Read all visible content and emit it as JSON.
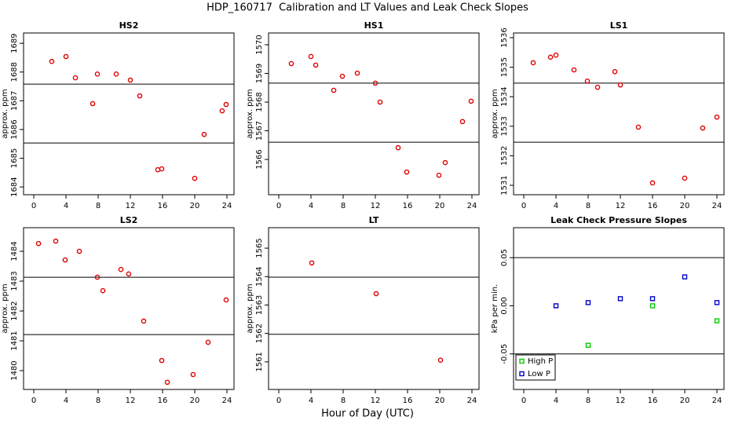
{
  "title": "HDP_160717  Calibration and LT Values and Leak Check Slopes",
  "xlabel": "Hour of Day (UTC)",
  "chart_data": [
    {
      "type": "scatter",
      "title": "HS2",
      "ylabel": "approx. ppm",
      "marker": "circle",
      "color": "#e00000",
      "x": [
        2.24,
        4.0,
        5.17,
        7.32,
        7.9,
        10.24,
        12.0,
        13.17,
        15.41,
        15.9,
        20.0,
        21.17,
        23.41,
        23.9
      ],
      "values": [
        1688.37,
        1688.54,
        1687.8,
        1686.9,
        1687.93,
        1687.93,
        1687.72,
        1687.17,
        1684.6,
        1684.63,
        1684.3,
        1685.83,
        1686.65,
        1686.87
      ],
      "reference_lines": [
        1687.58,
        1685.53
      ],
      "xlim": [
        -1.27,
        24.88
      ],
      "xticks": [
        0,
        4,
        8,
        12,
        16,
        20,
        24
      ],
      "ylim": [
        1683.73,
        1689.36
      ],
      "yticks": [
        1684,
        1685,
        1686,
        1687,
        1688,
        1689
      ]
    },
    {
      "type": "scatter",
      "title": "HS1",
      "ylabel": "approx. ppm",
      "marker": "circle",
      "color": "#e00000",
      "x": [
        1.56,
        4.0,
        4.59,
        6.83,
        7.9,
        9.76,
        12.0,
        12.59,
        14.83,
        15.9,
        19.9,
        20.68,
        22.83,
        23.9
      ],
      "values": [
        1569.34,
        1569.59,
        1569.29,
        1568.41,
        1568.9,
        1569.01,
        1568.66,
        1568.0,
        1566.41,
        1565.56,
        1565.45,
        1565.89,
        1567.32,
        1568.03
      ],
      "reference_lines": [
        1568.66,
        1566.6
      ],
      "xlim": [
        -1.27,
        24.88
      ],
      "xticks": [
        0,
        4,
        8,
        12,
        16,
        20,
        24
      ],
      "ylim": [
        1564.77,
        1570.41
      ],
      "yticks": [
        1566,
        1567,
        1568,
        1569,
        1570
      ]
    },
    {
      "type": "scatter",
      "title": "LS1",
      "ylabel": "approx. ppm",
      "marker": "circle",
      "color": "#e00000",
      "x": [
        1.17,
        3.32,
        4.0,
        6.24,
        7.9,
        9.17,
        11.32,
        12.0,
        14.24,
        16.0,
        20.0,
        22.24,
        24.0
      ],
      "values": [
        1535.15,
        1535.34,
        1535.41,
        1534.91,
        1534.53,
        1534.32,
        1534.85,
        1534.4,
        1532.97,
        1531.08,
        1531.24,
        1532.94,
        1533.31
      ],
      "reference_lines": [
        1534.46,
        1532.46
      ],
      "xlim": [
        -1.27,
        24.88
      ],
      "xticks": [
        0,
        4,
        8,
        12,
        16,
        20,
        24
      ],
      "ylim": [
        1530.68,
        1536.16
      ],
      "yticks": [
        1531,
        1532,
        1533,
        1534,
        1535,
        1536
      ]
    },
    {
      "type": "scatter",
      "title": "LS2",
      "ylabel": "approx. ppm",
      "marker": "circle",
      "color": "#e00000",
      "x": [
        0.59,
        2.73,
        3.9,
        5.66,
        7.9,
        8.59,
        10.83,
        11.8,
        13.66,
        15.9,
        16.59,
        19.8,
        21.66,
        23.9
      ],
      "values": [
        1484.26,
        1484.34,
        1483.71,
        1484.0,
        1483.13,
        1482.68,
        1483.39,
        1483.24,
        1481.66,
        1480.34,
        1479.61,
        1479.87,
        1480.95,
        1482.37
      ],
      "reference_lines": [
        1483.13,
        1481.21
      ],
      "xlim": [
        -1.27,
        24.88
      ],
      "xticks": [
        0,
        4,
        8,
        12,
        16,
        20,
        24
      ],
      "ylim": [
        1479.37,
        1484.79
      ],
      "yticks": [
        1480,
        1481,
        1482,
        1483,
        1484
      ]
    },
    {
      "type": "scatter",
      "title": "LT",
      "ylabel": "approx. ppm",
      "marker": "circle",
      "color": "#e00000",
      "x": [
        4.1,
        12.1,
        20.1
      ],
      "values": [
        1564.48,
        1563.4,
        1561.06
      ],
      "reference_lines": [
        1563.98,
        1561.97
      ],
      "xlim": [
        -1.27,
        24.88
      ],
      "xticks": [
        0,
        4,
        8,
        12,
        16,
        20,
        24
      ],
      "ylim": [
        1560.03,
        1565.72
      ],
      "yticks": [
        1561,
        1562,
        1563,
        1564,
        1565
      ]
    },
    {
      "type": "scatter",
      "title": "Leak Check Pressure Slopes",
      "ylabel": "kPa per min.",
      "marker": "square",
      "legend": "bottom-left",
      "series": [
        {
          "name": "High P",
          "color": "#00cc00",
          "x": [
            8.0,
            16.0,
            24.0
          ],
          "values": [
            -0.041,
            0.0,
            -0.0156
          ]
        },
        {
          "name": "Low P",
          "color": "#0000cc",
          "x": [
            4.0,
            8.0,
            12.0,
            16.0,
            20.0,
            24.0
          ],
          "values": [
            0.0,
            0.0033,
            0.0074,
            0.0074,
            0.03,
            0.0033
          ]
        }
      ],
      "reference_lines": [
        0.05,
        -0.05
      ],
      "xlim": [
        -1.27,
        24.88
      ],
      "xticks": [
        0,
        4,
        8,
        12,
        16,
        20,
        24
      ],
      "ylim": [
        -0.0869,
        0.0811
      ],
      "yticks": [
        -0.05,
        {
          "value": 0,
          "label": "0.00"
        },
        0.05
      ]
    }
  ]
}
